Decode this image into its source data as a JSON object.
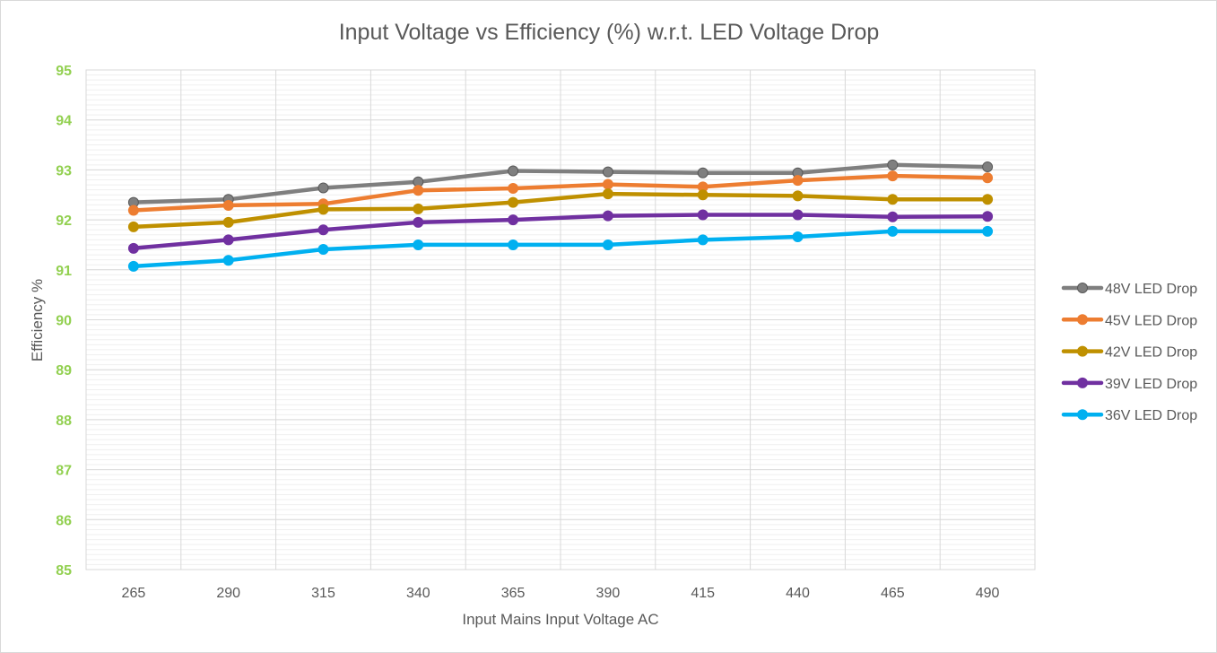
{
  "chart_data": {
    "type": "line",
    "title": "Input Voltage vs Efficiency (%) w.r.t. LED Voltage Drop",
    "xlabel": "Input Mains Input Voltage AC",
    "ylabel": "Efficiency %",
    "categories": [
      "265",
      "290",
      "315",
      "340",
      "365",
      "390",
      "415",
      "440",
      "465",
      "490"
    ],
    "ylim": [
      85,
      95
    ],
    "yticks": [
      "85",
      "86",
      "87",
      "88",
      "89",
      "90",
      "91",
      "92",
      "93",
      "94",
      "95"
    ],
    "grid": true,
    "legend": "right",
    "ytick_color": "#92d050",
    "series": [
      {
        "name": "48V LED Drop",
        "color": "#7f7f7f",
        "values": [
          92.35,
          92.41,
          92.64,
          92.76,
          92.98,
          92.96,
          92.94,
          92.94,
          93.1,
          93.06
        ]
      },
      {
        "name": "45V LED Drop",
        "color": "#ed7d31",
        "values": [
          92.19,
          92.29,
          92.32,
          92.59,
          92.63,
          92.71,
          92.66,
          92.79,
          92.88,
          92.84
        ]
      },
      {
        "name": "42V LED Drop",
        "color": "#bf9000",
        "values": [
          91.86,
          91.95,
          92.21,
          92.22,
          92.35,
          92.52,
          92.5,
          92.48,
          92.41,
          92.41
        ]
      },
      {
        "name": "39V LED Drop",
        "color": "#7030a0",
        "values": [
          91.43,
          91.6,
          91.8,
          91.95,
          92.0,
          92.08,
          92.1,
          92.1,
          92.06,
          92.07
        ]
      },
      {
        "name": "36V LED Drop",
        "color": "#00b0f0",
        "values": [
          91.07,
          91.19,
          91.41,
          91.5,
          91.5,
          91.5,
          91.6,
          91.66,
          91.77,
          91.77
        ]
      }
    ]
  }
}
